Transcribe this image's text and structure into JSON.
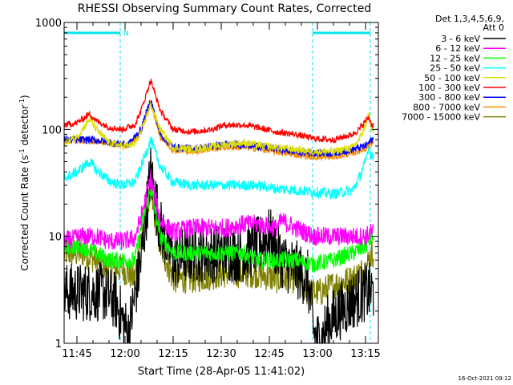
{
  "chart_data": {
    "type": "line",
    "title": "RHESSI Observing Summary Count Rates, Corrected",
    "xlabel": "Start Time (28-Apr-05 11:41:02)",
    "ylabel": "Corrected Count Rate (s⁻¹ detector⁻¹)",
    "ylabel_main": "Corrected Count Rate (s",
    "ylabel_sup1": "-1",
    "ylabel_mid": " detector",
    "ylabel_sup2": "-1",
    "ylabel_end": ")",
    "y_scale": "log",
    "ylim": [
      1,
      1000
    ],
    "xlim_minutes": [
      0,
      98
    ],
    "x_ticks": [
      {
        "min": 4,
        "label": "11:45"
      },
      {
        "min": 19,
        "label": "12:00"
      },
      {
        "min": 34,
        "label": "12:15"
      },
      {
        "min": 49,
        "label": "12:30"
      },
      {
        "min": 64,
        "label": "12:45"
      },
      {
        "min": 79,
        "label": "13:00"
      },
      {
        "min": 94,
        "label": "13:15"
      }
    ],
    "y_ticks": [
      {
        "value": 1,
        "label": "1"
      },
      {
        "value": 10,
        "label": "10"
      },
      {
        "value": 100,
        "label": "100"
      },
      {
        "value": 1000,
        "label": "1000"
      }
    ],
    "legend_header": [
      "Det 1,3,4,5,6,9,",
      "Att 0"
    ],
    "legend_position": "right",
    "annotations": {
      "night_marker": "N",
      "night_intervals_minutes": [
        [
          0,
          17.5
        ],
        [
          77.5,
          95.5
        ]
      ]
    },
    "series": [
      {
        "name": "3 - 6 keV",
        "color": "#000000",
        "x": [
          0,
          8,
          12,
          16,
          20,
          24,
          27,
          30,
          34,
          40,
          50,
          56,
          60,
          64,
          68,
          72,
          76,
          78,
          80,
          82,
          86,
          90,
          94,
          96
        ],
        "y": [
          3,
          3,
          3,
          2.5,
          1.2,
          6,
          40,
          12,
          6,
          7,
          7,
          7,
          8,
          10,
          6,
          5,
          4,
          1.2,
          1,
          1.5,
          2,
          2.5,
          3,
          3
        ]
      },
      {
        "name": "6 - 12 keV",
        "color": "#ff00ff",
        "x": [
          0,
          6,
          10,
          14,
          18,
          22,
          24,
          27,
          30,
          34,
          40,
          50,
          56,
          60,
          66,
          68,
          72,
          78,
          84,
          90,
          94,
          96
        ],
        "y": [
          9,
          10,
          10,
          9,
          9,
          9.5,
          15,
          35,
          14,
          11,
          12,
          12,
          13,
          13,
          12,
          14,
          12,
          10,
          10,
          10,
          10,
          11
        ]
      },
      {
        "name": "12 - 25 keV",
        "color": "#00ff00",
        "x": [
          0,
          6,
          10,
          14,
          18,
          22,
          24,
          27,
          30,
          34,
          40,
          50,
          56,
          60,
          66,
          72,
          78,
          84,
          90,
          94,
          96
        ],
        "y": [
          8,
          8,
          7,
          6,
          6,
          6,
          12,
          28,
          10,
          7,
          7,
          7,
          7,
          6,
          6,
          6,
          5.5,
          6,
          7,
          8,
          10
        ]
      },
      {
        "name": "25 - 50 keV",
        "color": "#00ffff",
        "x": [
          0,
          4,
          8,
          10,
          14,
          18,
          22,
          24,
          27,
          30,
          34,
          40,
          50,
          56,
          60,
          66,
          72,
          78,
          84,
          90,
          92,
          94,
          95,
          96
        ],
        "y": [
          35,
          40,
          50,
          42,
          33,
          30,
          32,
          45,
          80,
          45,
          32,
          30,
          30,
          30,
          30,
          28,
          27,
          26,
          25,
          27,
          35,
          50,
          70,
          55
        ]
      },
      {
        "name": "50 - 100 keV",
        "color": "#e0e000",
        "x": [
          0,
          4,
          8,
          10,
          14,
          18,
          22,
          24,
          27,
          30,
          34,
          40,
          50,
          56,
          60,
          66,
          72,
          78,
          84,
          90,
          92,
          94,
          95,
          96
        ],
        "y": [
          75,
          85,
          125,
          100,
          75,
          70,
          72,
          95,
          170,
          100,
          68,
          65,
          72,
          75,
          72,
          68,
          65,
          62,
          62,
          68,
          80,
          110,
          140,
          95
        ]
      },
      {
        "name": "100 - 300 keV",
        "color": "#ff0000",
        "x": [
          0,
          4,
          8,
          10,
          14,
          18,
          22,
          24,
          27,
          30,
          34,
          40,
          46,
          50,
          56,
          60,
          66,
          72,
          78,
          84,
          90,
          92,
          94,
          95,
          96
        ],
        "y": [
          110,
          115,
          140,
          120,
          105,
          100,
          110,
          150,
          290,
          150,
          100,
          95,
          100,
          110,
          110,
          105,
          95,
          90,
          82,
          80,
          90,
          100,
          120,
          130,
          110
        ]
      },
      {
        "name": "300 - 800 keV",
        "color": "#0000ff",
        "x": [
          0,
          4,
          8,
          12,
          16,
          20,
          24,
          27,
          30,
          34,
          40,
          50,
          56,
          60,
          66,
          72,
          78,
          84,
          90,
          94,
          96
        ],
        "y": [
          80,
          80,
          80,
          78,
          74,
          72,
          100,
          190,
          90,
          68,
          66,
          72,
          72,
          70,
          66,
          62,
          60,
          60,
          65,
          70,
          80
        ]
      },
      {
        "name": "800 - 7000 keV",
        "color": "#ff8c00",
        "x": [
          0,
          4,
          8,
          12,
          16,
          20,
          24,
          27,
          30,
          34,
          40,
          50,
          56,
          60,
          66,
          72,
          78,
          84,
          90,
          94,
          96
        ],
        "y": [
          78,
          78,
          78,
          76,
          72,
          70,
          95,
          180,
          85,
          64,
          62,
          68,
          68,
          66,
          62,
          58,
          55,
          55,
          60,
          66,
          76
        ]
      },
      {
        "name": "7000 - 15000 keV",
        "color": "#808000",
        "x": [
          0,
          6,
          10,
          14,
          18,
          22,
          24,
          27,
          30,
          34,
          40,
          50,
          56,
          60,
          66,
          72,
          76,
          80,
          84,
          90,
          94,
          96
        ],
        "y": [
          7,
          7,
          6,
          5,
          5,
          4,
          10,
          25,
          8,
          4,
          4,
          4.5,
          4.5,
          4.5,
          4,
          4,
          3,
          3,
          3.5,
          4,
          5,
          7
        ]
      }
    ]
  },
  "footer": {
    "timestamp": "16-Oct-2021 09:12"
  }
}
